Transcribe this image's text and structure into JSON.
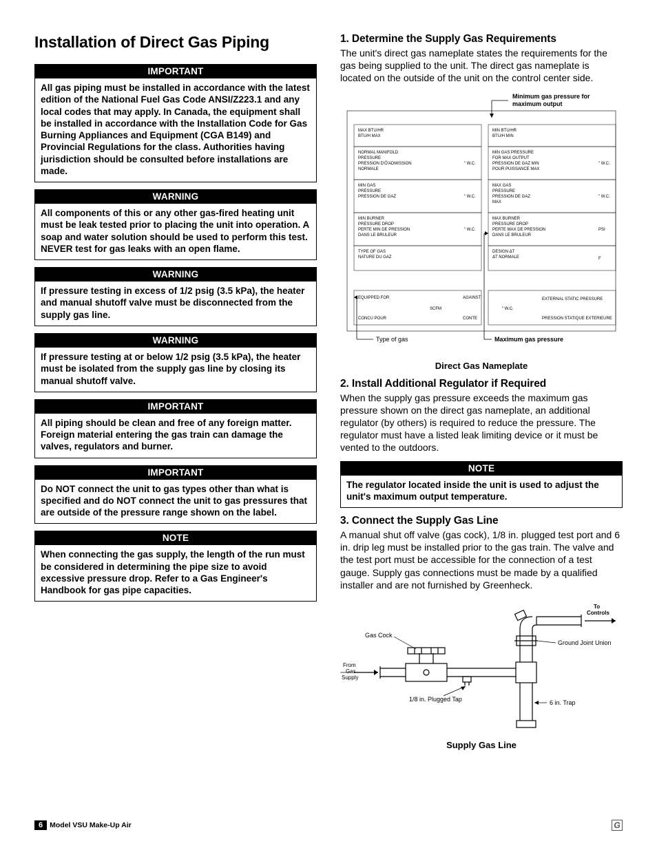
{
  "title": "Installation of Direct Gas Piping",
  "left_callouts": [
    {
      "header": "IMPORTANT",
      "body": "All gas piping must be installed in accordance with the latest edition of the National Fuel Gas Code ANSI/Z223.1 and any local codes that may apply. In Canada, the equipment shall be installed in accordance with the Installation Code for Gas Burning Appliances and Equipment (CGA B149) and Provincial Regulations for the class. Authorities having jurisdiction should be consulted before installations are made."
    },
    {
      "header": "WARNING",
      "body": "All components of this or any other gas-fired heating unit must be leak tested prior to placing the unit into operation. A soap and water solution should be used to perform this test. NEVER test for gas leaks with an open flame."
    },
    {
      "header": "WARNING",
      "body": "If pressure testing in excess of 1/2 psig (3.5 kPa), the heater and manual shutoff valve must be disconnected from the supply gas line."
    },
    {
      "header": "WARNING",
      "body": "If pressure testing at or below 1/2 psig (3.5 kPa), the heater must be isolated from the supply gas line by closing its manual shutoff valve."
    },
    {
      "header": "IMPORTANT",
      "body": "All piping should be clean and free of any foreign matter. Foreign material entering the gas train can damage the valves, regulators and burner."
    },
    {
      "header": "IMPORTANT",
      "body": "Do NOT connect the unit to gas types other than what is specified and do NOT connect the unit to gas pressures that are outside of the pressure range shown on the label."
    },
    {
      "header": "NOTE",
      "body": "When connecting the gas supply, the length of the run must be considered in determining the pipe size to avoid excessive pressure drop. Refer to a Gas Engineer's Handbook for gas pipe capacities."
    }
  ],
  "section1": {
    "title": "1.  Determine the Supply Gas Requirements",
    "body": "The unit's direct gas nameplate states the requirements for the gas being supplied to the unit. The direct gas nameplate is located on the outside of the unit on the control center side."
  },
  "nameplate": {
    "top_label1": "Minimum gas pressure for",
    "top_label2": "maximum output",
    "rows_left": [
      {
        "l1": "MAX BTU/HR",
        "l2": "BTU/H MAX",
        "unit": ""
      },
      {
        "l1": "NORMAL MANIFOLD",
        "l2": "PRESSURE",
        "l3": "PRESSION D'Ô'ADMISSION",
        "l4": "NORMALE",
        "unit": "\" W.C."
      },
      {
        "l1": "MIN GAS",
        "l2": "PRESSURE",
        "l3": "PRESSION DE GAZ",
        "unit": "\" W.C."
      },
      {
        "l1": "MIN BURNER",
        "l2": "PRESSURE DROP",
        "l3": "PERTE MIN DE PRESSION",
        "l4": "DANS LE BRULEUR",
        "unit": "\" W.C."
      },
      {
        "l1": "TYPE OF GAS",
        "l2": "NATURE DU GAZ",
        "unit": ""
      }
    ],
    "rows_right": [
      {
        "l1": "MIN BTU/HR",
        "l2": "BTU/H MIN",
        "unit": ""
      },
      {
        "l1": "MIN GAS PRESSURE",
        "l2": "FOR MAX OUTPUT",
        "l3": "PRESSION DE GAZ MIN",
        "l4": "POUR PUISSANCE MAX",
        "unit": "\" W.C."
      },
      {
        "l1": "MAX GAS",
        "l2": "PRESSURE",
        "l3": "PRESSION DE GAZ",
        "l4": "MAX",
        "unit": "\" W.C."
      },
      {
        "l1": "MAX BURNER",
        "l2": "PRESSURE DROP",
        "l3": "PERTE MAX DE PRESSION",
        "l4": "DANS LE BRULEUR",
        "unit": "PSI"
      },
      {
        "l1": "DESIGN ΔT",
        "l2": "ΔT NORMALE",
        "unit": "F"
      }
    ],
    "equipped_for": "EQUIPPED FOR",
    "concu_pour": "CONCU POUR",
    "scfm": "SCFM",
    "against": "AGAINST",
    "conte": "CONTE",
    "wc": "\" W.C.",
    "ext_static1": "EXTERNAL STATIC PRESSURE",
    "ext_static2": "PRESSION STATIQUE EXTERIEURE",
    "bottom_left": "Type of gas",
    "bottom_right": "Maximum gas pressure",
    "caption": "Direct Gas Nameplate"
  },
  "section2": {
    "title": "2.  Install Additional Regulator if Required",
    "body": "When the supply gas pressure exceeds the maximum gas pressure shown on the direct gas nameplate, an additional regulator (by others) is required to reduce the pressure. The regulator must have a listed leak limiting device or it must be vented to the outdoors."
  },
  "note_right": {
    "header": "NOTE",
    "body": "The regulator located inside the unit is used to adjust the unit's maximum output temperature."
  },
  "section3": {
    "title": "3.  Connect the Supply Gas Line",
    "body": "A manual shut off valve (gas cock), 1/8 in. plugged test port and 6 in. drip leg must be installed prior to the gas train. The valve and the test port must be accessible for the connection of a test gauge. Supply gas connections must be made by a qualified installer and are not furnished by Greenheck."
  },
  "diagram": {
    "gas_cock": "Gas Cock",
    "from_gas_supply1": "From",
    "from_gas_supply2": "Gas",
    "from_gas_supply3": "Supply",
    "plugged_tap": "1/8 in. Plugged Tap",
    "to_controls1": "To",
    "to_controls2": "Controls",
    "ground_joint": "Ground Joint Union",
    "trap": "6 in. Trap",
    "caption": "Supply Gas Line"
  },
  "footer": {
    "page": "6",
    "model": "Model VSU Make-Up Air"
  }
}
